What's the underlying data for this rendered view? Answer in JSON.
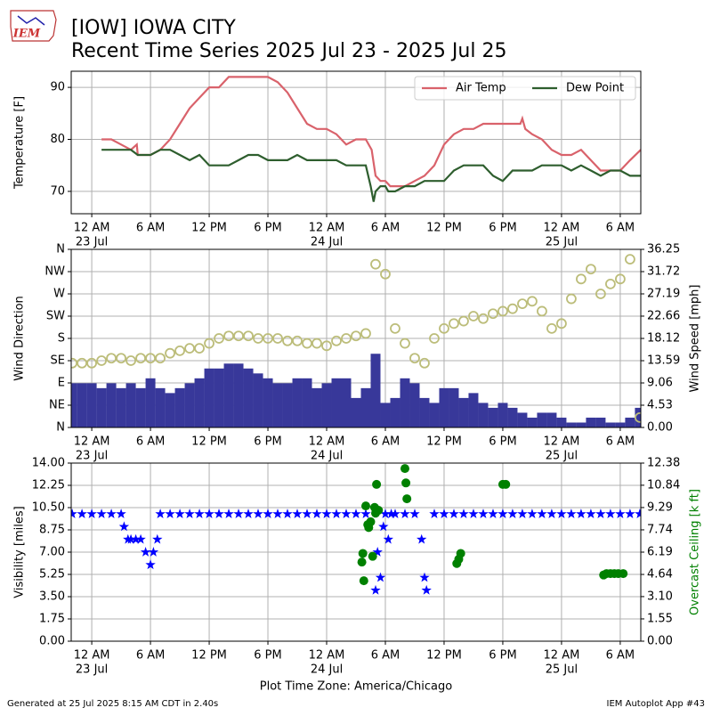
{
  "logo": "IEM",
  "title": [
    "[IOW] IOWA CITY",
    "Recent Time Series 2025 Jul 23 - 2025 Jul 25"
  ],
  "footer_left": "Generated at 25 Jul 2025 8:15 AM CDT in 2.40s",
  "footer_right": "IEM Autoplot App #43",
  "time_axis": {
    "label": "Plot Time Zone: America/Chicago",
    "xlim": [
      -2.1,
      56.1
    ],
    "xticks": [
      {
        "value": 0,
        "label": "12 AM",
        "date": "23 Jul"
      },
      {
        "value": 6,
        "label": "6 AM"
      },
      {
        "value": 12,
        "label": "12 PM"
      },
      {
        "value": 18,
        "label": "6 PM"
      },
      {
        "value": 24,
        "label": "12 AM",
        "date": "24 Jul"
      },
      {
        "value": 30,
        "label": "6 AM"
      },
      {
        "value": 36,
        "label": "12 PM"
      },
      {
        "value": 42,
        "label": "6 PM"
      },
      {
        "value": 48,
        "label": "12 AM",
        "date": "25 Jul"
      },
      {
        "value": 54,
        "label": "6 AM"
      }
    ]
  },
  "chart_data": [
    {
      "type": "line",
      "ylabel": "Temperature [F]",
      "ylim": [
        65.7,
        93.1
      ],
      "yticks": [
        70,
        80,
        90
      ],
      "grid": true,
      "legend": "upper right",
      "series": [
        {
          "name": "Air Temp",
          "color": "#d9626b",
          "x": [
            1,
            2,
            3,
            4,
            4.6,
            4.7,
            5,
            6,
            7,
            8,
            9,
            10,
            11,
            12,
            13,
            14,
            15,
            16,
            17,
            18,
            19,
            20,
            21,
            22,
            23,
            24,
            25,
            26,
            27,
            28,
            28.6,
            29,
            29.5,
            30,
            30.5,
            31,
            32,
            33,
            34,
            35,
            36,
            37,
            38,
            39,
            40,
            41,
            42,
            43,
            43.8,
            44,
            44.3,
            45,
            46,
            47,
            48,
            49,
            50,
            51,
            52,
            53,
            54,
            55,
            56.1
          ],
          "values": [
            80,
            80,
            79,
            78,
            79,
            77,
            77,
            77,
            78,
            80,
            83,
            86,
            88,
            90,
            90,
            92,
            92,
            92,
            92,
            92,
            91,
            89,
            86,
            83,
            82,
            82,
            81,
            79,
            80,
            80,
            78,
            73,
            72,
            72,
            71,
            71,
            71,
            72,
            73,
            75,
            79,
            81,
            82,
            82,
            83,
            83,
            83,
            83,
            83,
            84,
            82,
            81,
            80,
            78,
            77,
            77,
            78,
            76,
            74,
            74,
            74,
            76,
            78
          ]
        },
        {
          "name": "Dew Point",
          "color": "#2e5e2e",
          "x": [
            1,
            2,
            3,
            4,
            4.7,
            5,
            6,
            7,
            8,
            9,
            10,
            11,
            12,
            13,
            14,
            15,
            16,
            17,
            18,
            19,
            20,
            21,
            22,
            23,
            24,
            25,
            26,
            27,
            28,
            28.5,
            28.8,
            29,
            29.5,
            30,
            30.3,
            31,
            32,
            33,
            34,
            35,
            36,
            37,
            38,
            39,
            40,
            41,
            42,
            43,
            44,
            45,
            46,
            47,
            48,
            49,
            50,
            51,
            52,
            53,
            54,
            55,
            56.1
          ],
          "values": [
            78,
            78,
            78,
            78,
            77,
            77,
            77,
            78,
            78,
            77,
            76,
            77,
            75,
            75,
            75,
            76,
            77,
            77,
            76,
            76,
            76,
            77,
            76,
            76,
            76,
            76,
            75,
            75,
            75,
            71,
            68,
            70,
            71,
            71,
            70,
            70,
            71,
            71,
            72,
            72,
            72,
            74,
            75,
            75,
            75,
            73,
            72,
            74,
            74,
            74,
            75,
            75,
            75,
            74,
            75,
            74,
            73,
            74,
            74,
            73,
            73
          ]
        }
      ]
    },
    {
      "type": "wind",
      "ylabel": "Wind Direction",
      "y2label": "Wind Speed [mph]",
      "grid": true,
      "ylim": [
        0,
        360
      ],
      "yticks": [
        {
          "value": 0,
          "label": "N"
        },
        {
          "value": 45,
          "label": "NE"
        },
        {
          "value": 90,
          "label": "E"
        },
        {
          "value": 135,
          "label": "SE"
        },
        {
          "value": 180,
          "label": "S"
        },
        {
          "value": 225,
          "label": "SW"
        },
        {
          "value": 270,
          "label": "W"
        },
        {
          "value": 315,
          "label": "NW"
        },
        {
          "value": 360,
          "label": "N"
        }
      ],
      "y2lim": [
        0,
        36.25
      ],
      "y2ticks": [
        {
          "value": 0,
          "label": "0.00"
        },
        4.53,
        9.06,
        13.59,
        18.12,
        22.66,
        27.19,
        31.72,
        36.25
      ],
      "series": [
        {
          "type": "bar",
          "axis": "y2",
          "color": "#38389a",
          "x": [
            -2,
            -1,
            0,
            1,
            2,
            3,
            4,
            5,
            6,
            7,
            8,
            9,
            10,
            11,
            12,
            13,
            14,
            15,
            16,
            17,
            18,
            19,
            20,
            21,
            22,
            23,
            24,
            25,
            26,
            27,
            28,
            29,
            30,
            31,
            32,
            33,
            34,
            35,
            36,
            37,
            38,
            39,
            40,
            41,
            42,
            43,
            44,
            45,
            46,
            47,
            48,
            49,
            50,
            51,
            52,
            53,
            54,
            55,
            56
          ],
          "values": [
            9,
            9,
            9,
            8,
            9,
            8,
            9,
            8,
            10,
            8,
            7,
            8,
            9,
            10,
            12,
            12,
            13,
            13,
            12,
            11,
            10,
            9,
            9,
            10,
            10,
            8,
            9,
            10,
            10,
            6,
            8,
            15,
            5,
            6,
            10,
            9,
            6,
            5,
            8,
            8,
            6,
            7,
            5,
            4,
            5,
            4,
            3,
            2,
            3,
            3,
            2,
            1,
            1,
            2,
            2,
            1,
            1,
            2,
            4
          ]
        },
        {
          "type": "scatter",
          "color": "#bcbd7a",
          "x": [
            -2,
            -1,
            0,
            1,
            2,
            3,
            4,
            5,
            6,
            7,
            8,
            9,
            10,
            11,
            12,
            13,
            14,
            15,
            16,
            17,
            18,
            19,
            20,
            21,
            22,
            23,
            24,
            25,
            26,
            27,
            28,
            29,
            30,
            31,
            32,
            33,
            34,
            35,
            36,
            37,
            38,
            39,
            40,
            41,
            42,
            43,
            44,
            45,
            46,
            47,
            48,
            49,
            50,
            51,
            52,
            53,
            54,
            55,
            56
          ],
          "values": [
            130,
            130,
            130,
            135,
            140,
            140,
            135,
            140,
            140,
            140,
            150,
            155,
            160,
            160,
            170,
            180,
            185,
            185,
            185,
            180,
            180,
            180,
            175,
            175,
            170,
            170,
            165,
            175,
            180,
            185,
            190,
            330,
            310,
            200,
            170,
            140,
            130,
            180,
            200,
            210,
            215,
            225,
            220,
            230,
            235,
            240,
            250,
            255,
            235,
            200,
            210,
            260,
            300,
            320,
            270,
            290,
            300,
            340,
            20
          ]
        }
      ]
    },
    {
      "type": "visibility",
      "ylabel": "Visibility [miles]",
      "y2label": "Overcast Ceiling [k ft]",
      "y2label_color": "green",
      "grid": true,
      "ylim": [
        0,
        14
      ],
      "yticks": [
        {
          "value": 0,
          "label": "0.00"
        },
        1.75,
        {
          "value": 3.5,
          "label": "3.50"
        },
        5.25,
        {
          "value": 7,
          "label": "7.00"
        },
        8.75,
        {
          "value": 10.5,
          "label": "10.50"
        },
        12.25,
        {
          "value": 14,
          "label": "14.00"
        }
      ],
      "y2lim": [
        0,
        12.38
      ],
      "y2ticks": [
        {
          "value": 0,
          "label": "0.00"
        },
        1.55,
        {
          "value": 3.1,
          "label": "3.10"
        },
        4.64,
        6.19,
        7.74,
        9.29,
        10.84,
        12.38
      ],
      "series": [
        {
          "type": "star",
          "color": "blue",
          "x": [
            -2,
            -1,
            0,
            1,
            2,
            3,
            3.3,
            3.7,
            4,
            4.5,
            5,
            5.5,
            6,
            6.3,
            6.7,
            7,
            8,
            9,
            10,
            11,
            12,
            13,
            14,
            15,
            16,
            17,
            18,
            19,
            20,
            21,
            22,
            23,
            24,
            25,
            26,
            27,
            28,
            29,
            29.2,
            29.5,
            29.8,
            30,
            30.3,
            30.6,
            31,
            32,
            33,
            33.7,
            34,
            34.2,
            35,
            36,
            37,
            38,
            39,
            40,
            41,
            42,
            43,
            44,
            45,
            46,
            47,
            48,
            49,
            50,
            51,
            52,
            53,
            54,
            55,
            56
          ],
          "values": [
            10,
            10,
            10,
            10,
            10,
            10,
            9,
            8,
            8,
            8,
            8,
            7,
            6,
            7,
            8,
            10,
            10,
            10,
            10,
            10,
            10,
            10,
            10,
            10,
            10,
            10,
            10,
            10,
            10,
            10,
            10,
            10,
            10,
            10,
            10,
            10,
            10,
            4,
            7,
            5,
            9,
            10,
            8,
            10,
            10,
            10,
            10,
            8,
            5,
            4,
            10,
            10,
            10,
            10,
            10,
            10,
            10,
            10,
            10,
            10,
            10,
            10,
            10,
            10,
            10,
            10,
            10,
            10,
            10,
            10,
            10,
            10
          ]
        },
        {
          "type": "dot",
          "axis": "y2",
          "color": "green",
          "x": [
            27.6,
            27.7,
            27.8,
            28.0,
            28.2,
            28.3,
            28.5,
            28.7,
            28.9,
            29.0,
            29.1,
            29.3,
            32.0,
            32.1,
            32.2,
            37.3,
            37.5,
            37.7,
            42.0,
            42.3,
            52.3,
            52.6,
            53.0,
            53.4,
            53.8,
            54.3
          ],
          "values": [
            5.5,
            6.1,
            4.2,
            9.4,
            8.1,
            7.9,
            8.3,
            5.9,
            9.3,
            8.9,
            10.9,
            9.1,
            12.0,
            11.0,
            9.9,
            5.4,
            5.7,
            6.1,
            10.9,
            10.9,
            4.6,
            4.7,
            4.7,
            4.7,
            4.7,
            4.7
          ]
        }
      ]
    }
  ]
}
